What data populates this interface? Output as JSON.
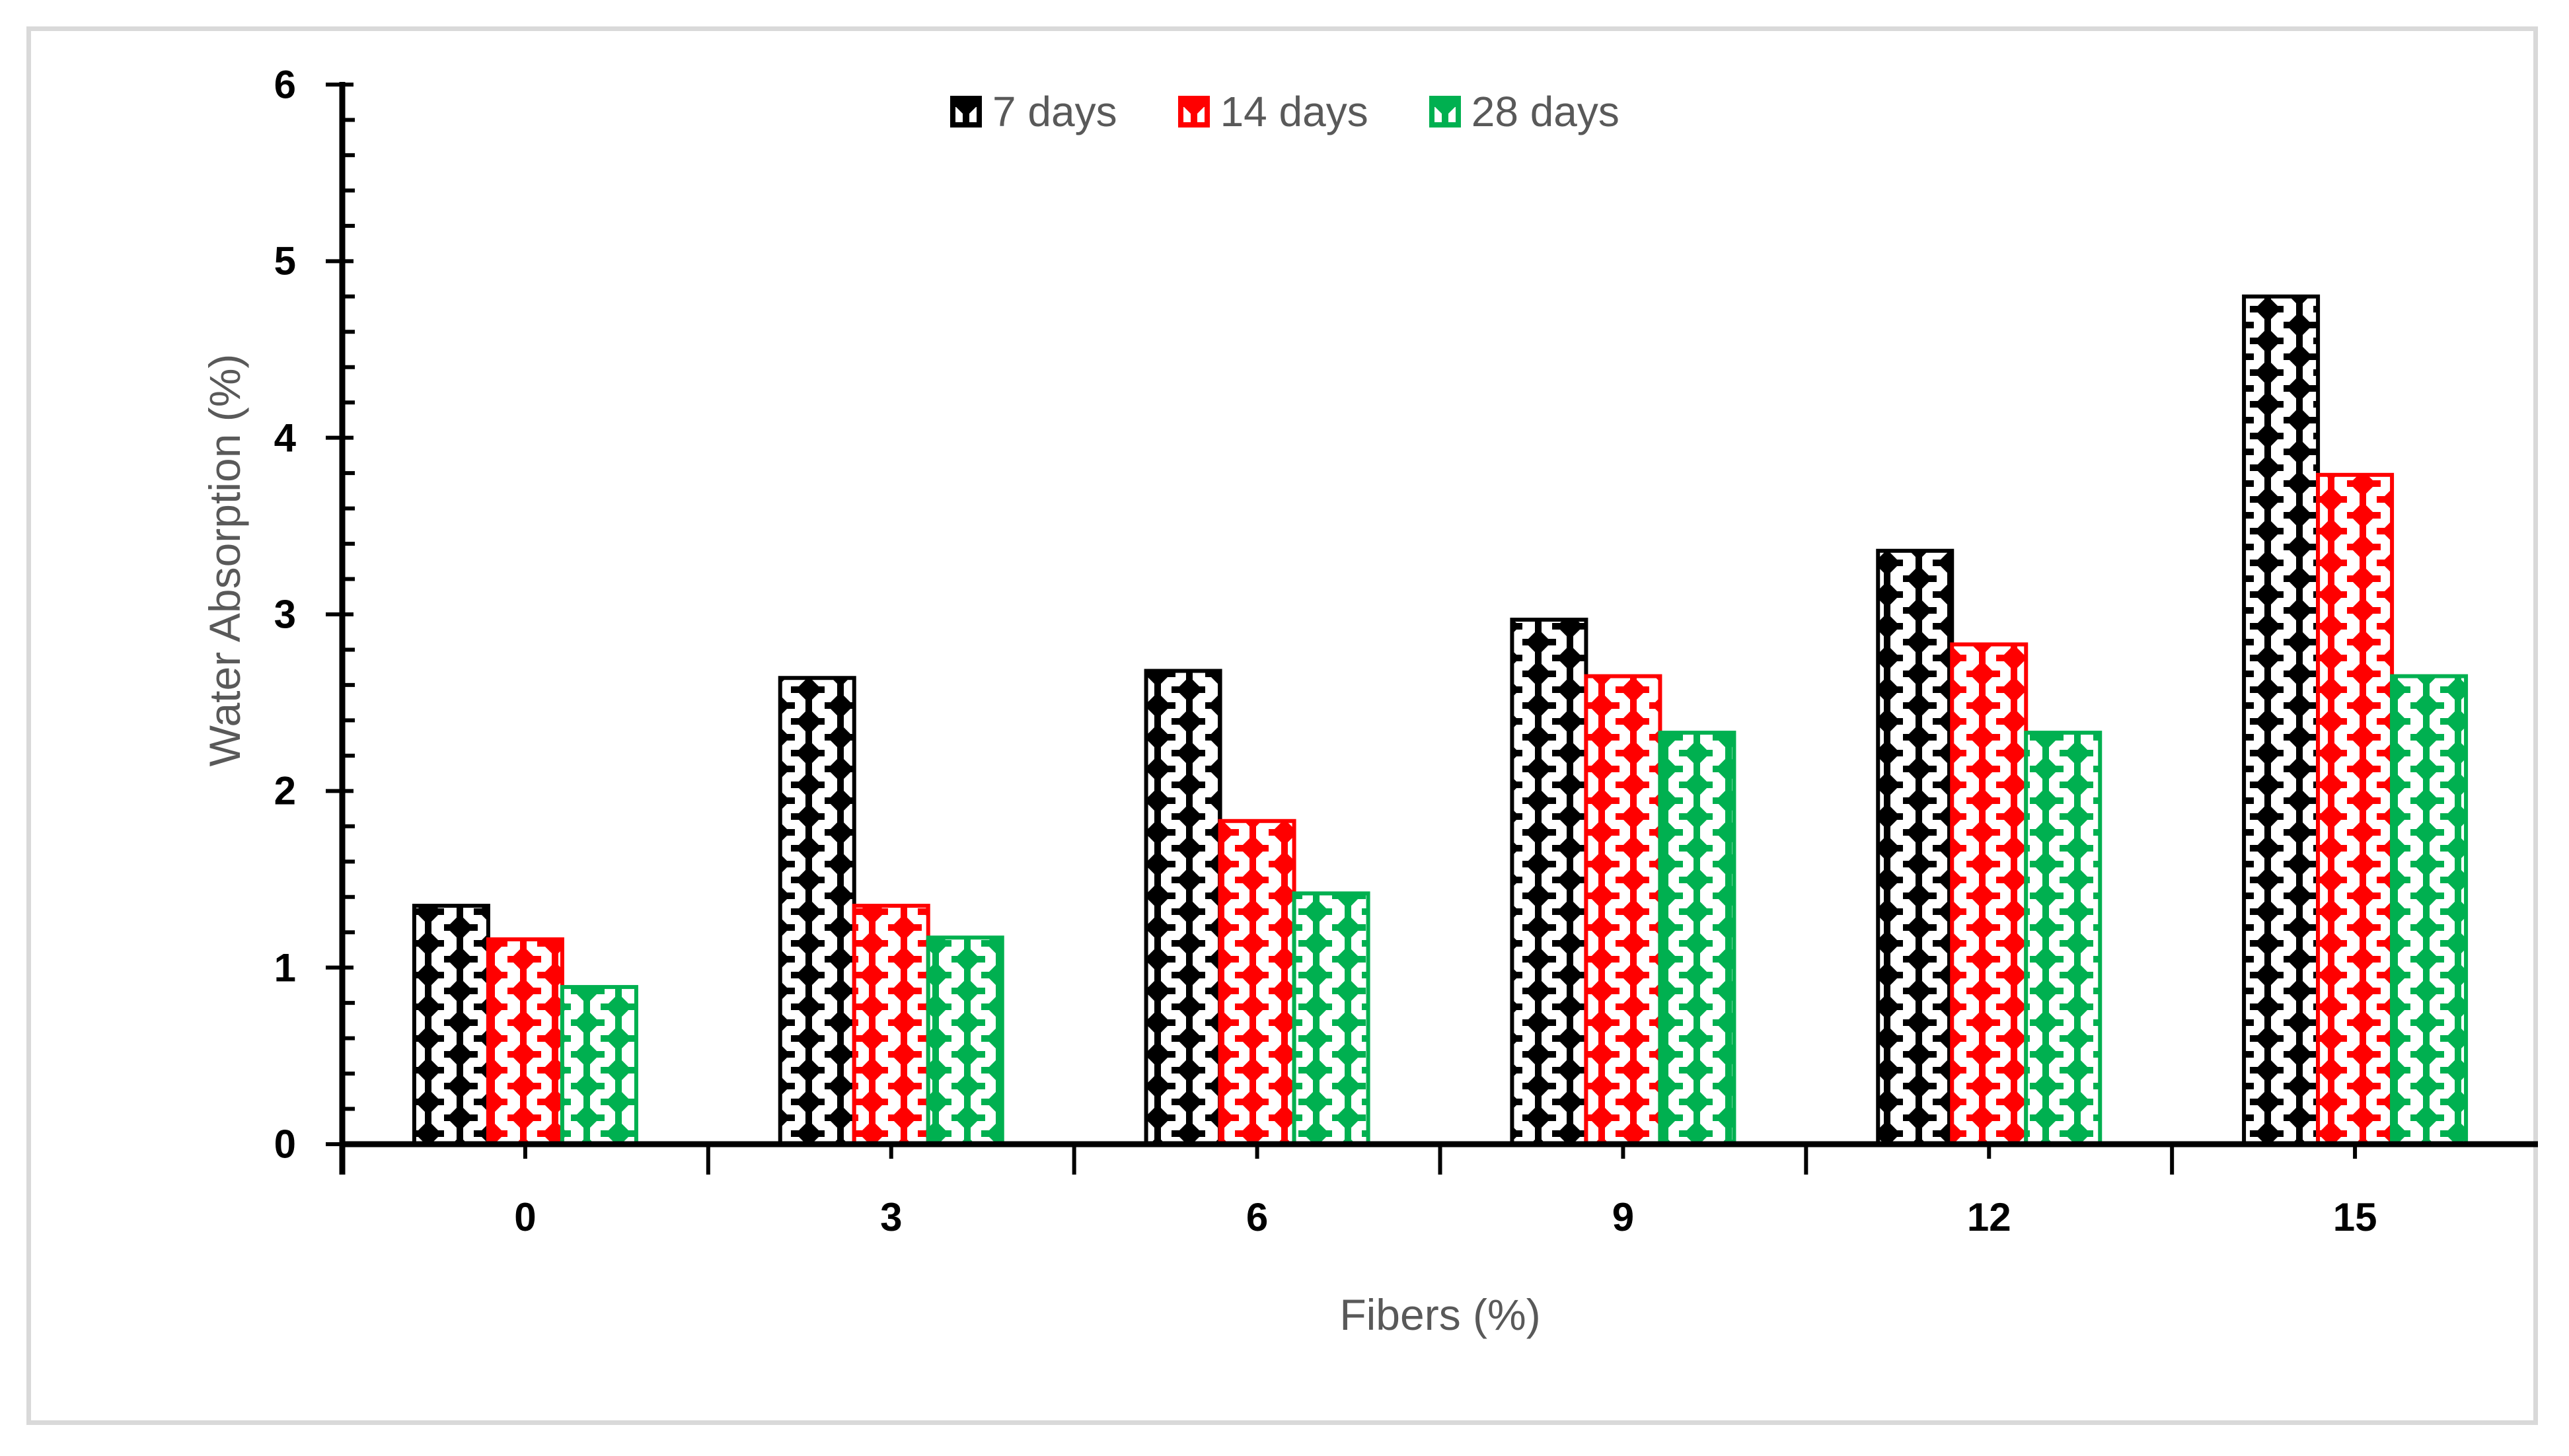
{
  "figure": {
    "frame_color": "#D9D9D9",
    "background": "#FFFFFF"
  },
  "chart_data": {
    "type": "bar",
    "title": "",
    "xlabel": "Fibers (%)",
    "ylabel": "Water Absorption (%)",
    "categories": [
      "0",
      "3",
      "6",
      "9",
      "12",
      "15"
    ],
    "series": [
      {
        "name": "7 days",
        "color": "#000000",
        "values": [
          1.35,
          2.64,
          2.68,
          2.97,
          3.36,
          4.8
        ]
      },
      {
        "name": "14 days",
        "color": "#FF0000",
        "values": [
          1.16,
          1.35,
          1.83,
          2.65,
          2.83,
          3.79
        ]
      },
      {
        "name": "28 days",
        "color": "#00B050",
        "values": [
          0.89,
          1.17,
          1.42,
          2.33,
          2.33,
          2.65
        ]
      }
    ],
    "ylim": [
      0,
      6
    ],
    "ytick_step": 1,
    "yminor_step": 0.2,
    "yticks": [
      "0",
      "1",
      "2",
      "3",
      "4",
      "5",
      "6"
    ],
    "grid": false,
    "legend_position": "top-center",
    "pattern": "diamond-checker",
    "axis_color": "#000000",
    "tick_label_color": "#000000",
    "title_color": "#595959"
  },
  "legend": {
    "items": [
      {
        "label": "7 days"
      },
      {
        "label": "14 days"
      },
      {
        "label": "28 days"
      }
    ]
  },
  "titles": {
    "x": "Fibers (%)",
    "y": "Water Absorption (%)"
  }
}
